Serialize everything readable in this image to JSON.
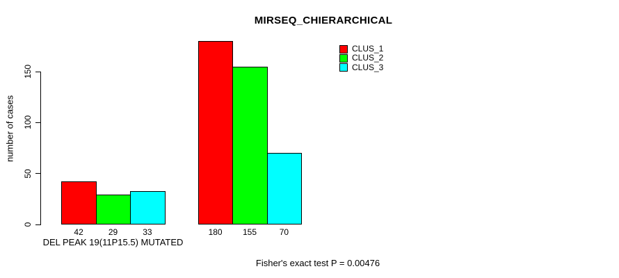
{
  "chart_data": {
    "type": "bar",
    "title": "MIRSEQ_CHIERARCHICAL",
    "ylabel": "number of cases",
    "xlabel": "",
    "yticks": [
      0,
      50,
      100,
      150
    ],
    "ylim": [
      0,
      180
    ],
    "grid": false,
    "legend_position": "top-right",
    "categories": [
      "DEL PEAK 19(11P15.5) MUTATED",
      ""
    ],
    "series": [
      {
        "name": "CLUS_1",
        "color": "#ff0000",
        "values": [
          42,
          180
        ]
      },
      {
        "name": "CLUS_2",
        "color": "#00ff00",
        "values": [
          29,
          155
        ]
      },
      {
        "name": "CLUS_3",
        "color": "#00ffff",
        "values": [
          33,
          70
        ]
      }
    ],
    "bar_value_labels": [
      [
        42,
        29,
        33
      ],
      [
        180,
        155,
        70
      ]
    ],
    "annotation": "Fisher's exact test P = 0.00476"
  }
}
